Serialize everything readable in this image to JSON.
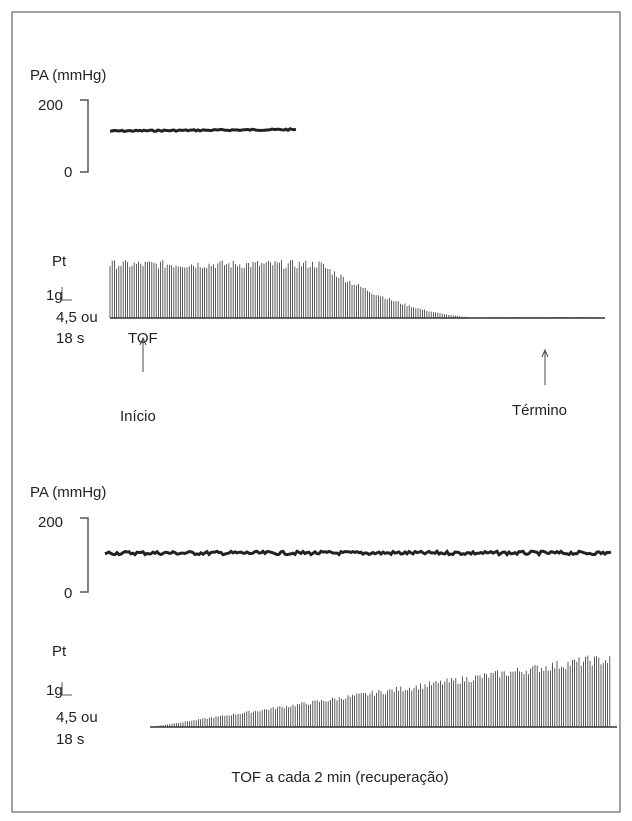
{
  "panel1": {
    "pa_label": "PA (mmHg)",
    "pa_scale_top": 200,
    "pa_scale_bottom": 0,
    "pt_label": "Pt",
    "pt_scale": "1g",
    "time_scale_1": "4,5 ou",
    "time_scale_2": "18 s",
    "stimulus_label": "TOF",
    "start_label": "Início",
    "end_label": "Término"
  },
  "panel2": {
    "pa_label": "PA (mmHg)",
    "pa_scale_top": 200,
    "pa_scale_bottom": 0,
    "pt_label": "Pt",
    "pt_scale": "1g",
    "time_scale_1": "4,5 ou",
    "time_scale_2": "18 s",
    "caption": "TOF a cada 2 min (recuperação)"
  }
}
